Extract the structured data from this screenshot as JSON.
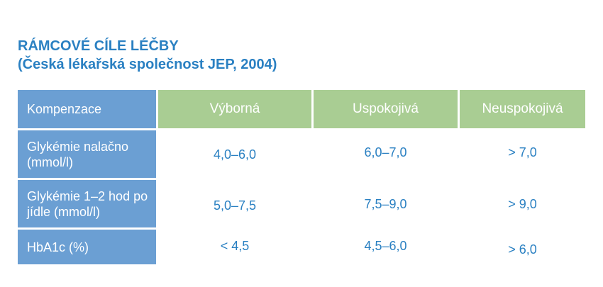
{
  "title": {
    "line1": "RÁMCOVÉ CÍLE LÉČBY",
    "line2": "(Česká lékařská společnost JEP, 2004)"
  },
  "table": {
    "corner": "Kompenzace",
    "columns": [
      "Výborná",
      "Uspokojivá",
      "Neuspokojivá"
    ],
    "rows": [
      {
        "label": "Glykémie nalačno (mmol/l)",
        "values": [
          "4,0–6,0",
          "6,0–7,0",
          "> 7,0"
        ]
      },
      {
        "label": "Glykémie 1–2 hod po jídle (mmol/l)",
        "values": [
          "5,0–7,5",
          "7,5–9,0",
          "> 9,0"
        ]
      },
      {
        "label": "HbA1c (%)",
        "values": [
          "< 4,5",
          "4,5–6,0",
          "> 6,0"
        ]
      }
    ]
  },
  "colors": {
    "title": "#2a80c2",
    "row_header_bg": "#6b9fd3",
    "column_header_bg": "#a9cd93",
    "value_text": "#2a80c2"
  }
}
